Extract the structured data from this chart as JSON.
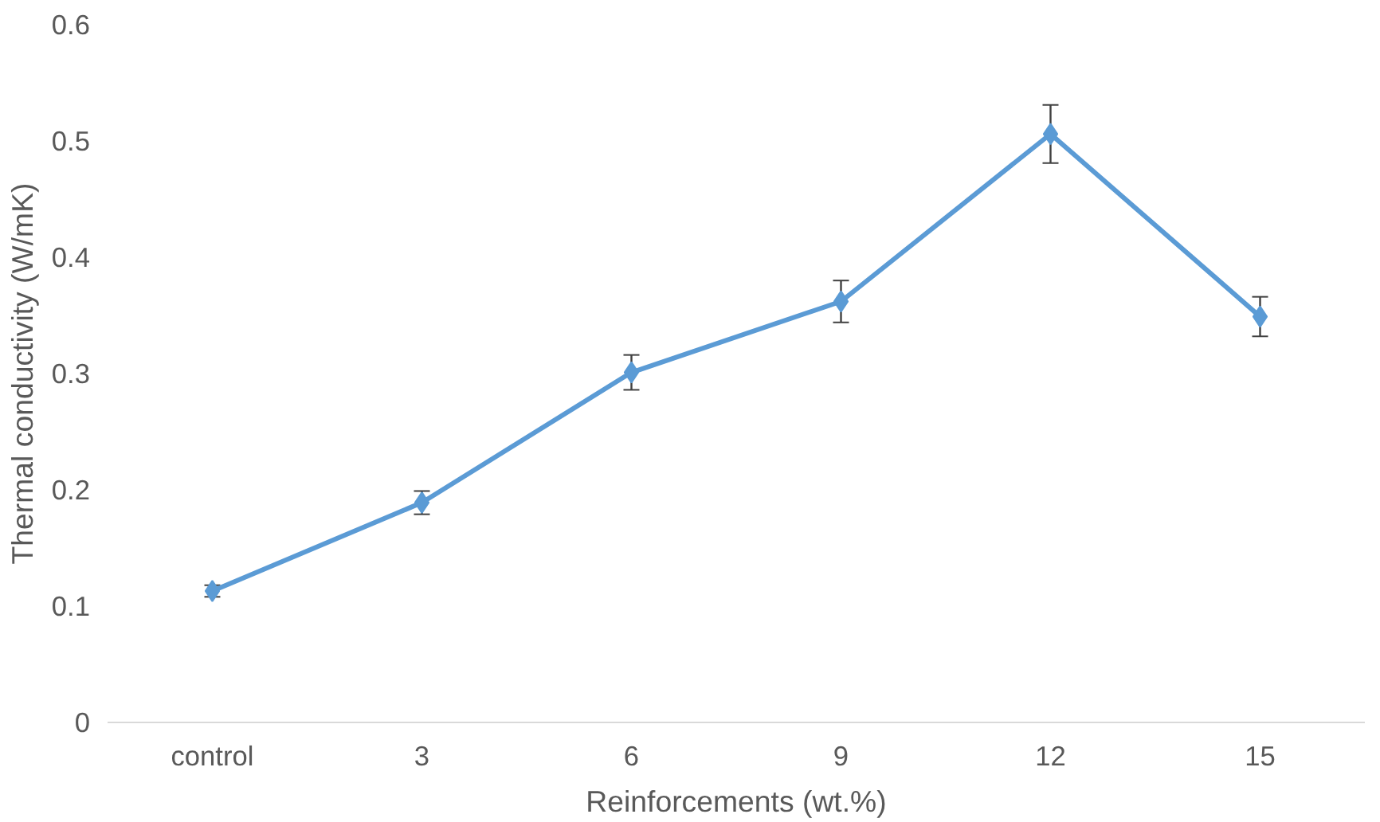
{
  "chart_data": {
    "type": "line",
    "xlabel": "Reinforcements (wt.%)",
    "ylabel": "Thermal conductivity (W/mK)",
    "categories": [
      "control",
      "3",
      "6",
      "9",
      "12",
      "15"
    ],
    "series": [
      {
        "color": "#5b9bd5",
        "values": [
          0.113,
          0.189,
          0.301,
          0.362,
          0.506,
          0.349
        ],
        "errors": [
          0.005,
          0.01,
          0.015,
          0.018,
          0.025,
          0.017
        ]
      }
    ],
    "ylim": [
      0,
      0.6
    ],
    "yticks": [
      0,
      0.1,
      0.2,
      0.3,
      0.4,
      0.5,
      0.6
    ],
    "grid": false,
    "marker": "diamond",
    "line_style": "solid"
  }
}
